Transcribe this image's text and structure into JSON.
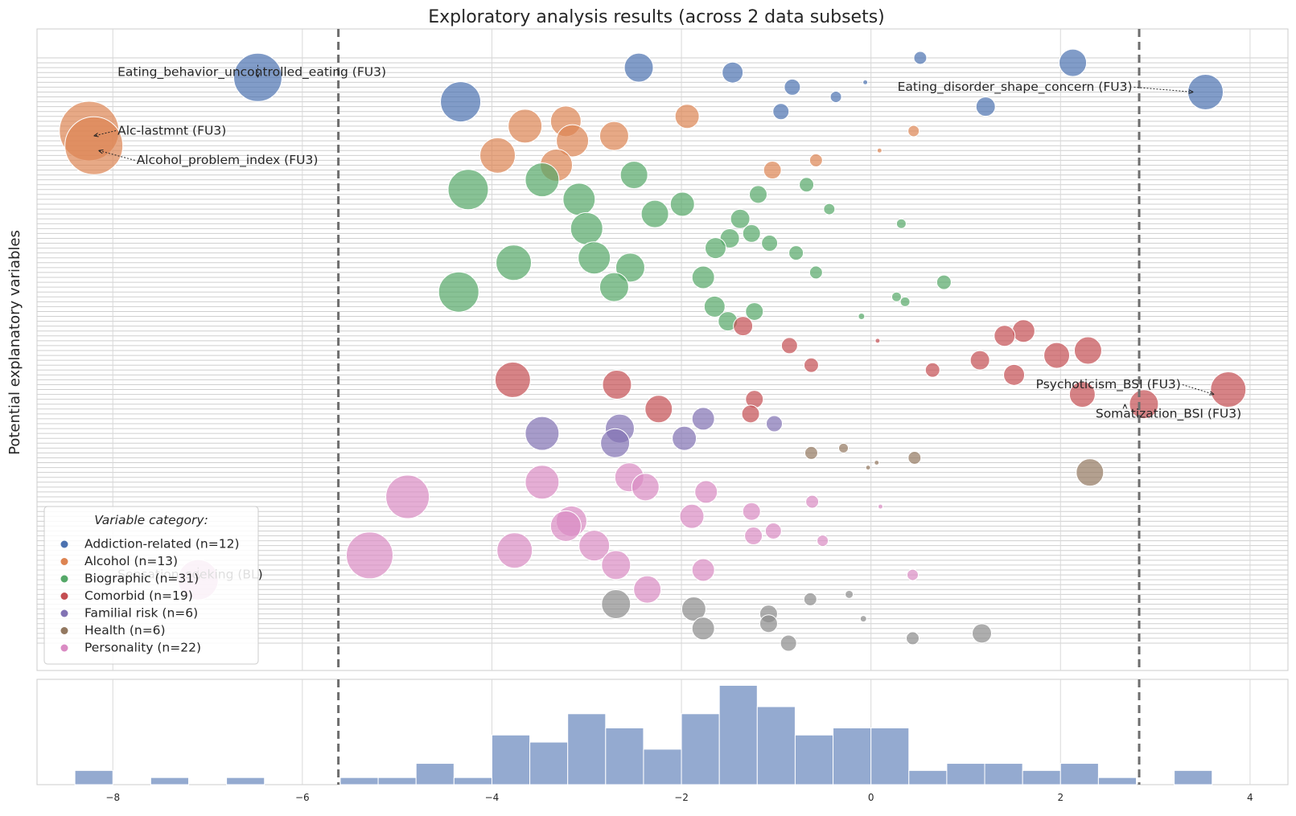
{
  "chart_data": {
    "type": "scatter",
    "title": "Exploratory analysis results (across 2 data subsets)",
    "ylabel": "Potential explanatory variables",
    "xlabel": "",
    "xlim": [
      -8.8,
      4.4
    ],
    "x_ticks": [
      -8,
      -6,
      -4,
      -2,
      0,
      2,
      4
    ],
    "x_tick_labels": [
      "−8",
      "−6",
      "−4",
      "−2",
      "0",
      "2",
      "4"
    ],
    "grid": true,
    "thresholds": [
      -5.62,
      2.83
    ],
    "legend": {
      "title": "Variable category:",
      "placement": "lower-left",
      "entries": [
        {
          "label": "Addiction-related (n=12)",
          "color": "#4c72b0"
        },
        {
          "label": "Alcohol (n=13)",
          "color": "#dd8452"
        },
        {
          "label": "Biographic (n=31)",
          "color": "#55a868"
        },
        {
          "label": "Comorbid (n=19)",
          "color": "#c44e52"
        },
        {
          "label": "Familial risk (n=6)",
          "color": "#8172b3"
        },
        {
          "label": "Health (n=6)",
          "color": "#937860"
        },
        {
          "label": "Personality (n=22)",
          "color": "#da8bc3"
        }
      ]
    },
    "colors": {
      "Addiction-related": "#4c72b0",
      "Alcohol": "#dd8452",
      "Biographic": "#55a868",
      "Comorbid": "#c44e52",
      "Familial risk": "#8172b3",
      "Health": "#937860",
      "Personality": "#da8bc3",
      "Other": "#8c8c8c"
    },
    "annotations": [
      {
        "text": "Eating_behavior_uncontrolled_eating (FU3)",
        "text_x": -7.95,
        "text_row": 3,
        "x": -6.47,
        "row": 4
      },
      {
        "text": "Eating_disorder_shape_concern (FU3)",
        "text_x": 0.28,
        "text_row": 6,
        "x": 3.4,
        "row": 7
      },
      {
        "text": "Alc-lastmnt (FU3)",
        "text_x": -7.95,
        "text_row": 15,
        "x": -8.2,
        "row": 16
      },
      {
        "text": "Alcohol_problem_index (FU3)",
        "text_x": -7.75,
        "text_row": 21,
        "x": -8.15,
        "row": 19
      },
      {
        "text": "Psychoticism_BSI (FU3)",
        "text_x": 1.74,
        "text_row": 67,
        "x": 3.62,
        "row": 69
      },
      {
        "text": "Somatization_BSI (FU3)",
        "text_x": 2.37,
        "text_row": 73,
        "x": 2.68,
        "row": 71
      },
      {
        "text": "Sensation_seeking (BL)",
        "text_x": -7.95,
        "text_row": 106,
        "x": -7.1,
        "row": 107
      }
    ],
    "n_rows": 118,
    "points": [
      {
        "x": 0.52,
        "row": 0,
        "s": 8,
        "c": "Addiction-related"
      },
      {
        "x": -2.45,
        "row": 2,
        "s": 18,
        "c": "Addiction-related"
      },
      {
        "x": 2.13,
        "row": 1,
        "s": 17,
        "c": "Addiction-related"
      },
      {
        "x": -1.46,
        "row": 3,
        "s": 13,
        "c": "Addiction-related"
      },
      {
        "x": -6.47,
        "row": 4,
        "s": 30,
        "c": "Addiction-related"
      },
      {
        "x": -0.83,
        "row": 6,
        "s": 10,
        "c": "Addiction-related"
      },
      {
        "x": -0.06,
        "row": 5,
        "s": 3,
        "c": "Addiction-related"
      },
      {
        "x": 3.53,
        "row": 7,
        "s": 22,
        "c": "Addiction-related"
      },
      {
        "x": -0.37,
        "row": 8,
        "s": 7,
        "c": "Addiction-related"
      },
      {
        "x": -4.33,
        "row": 9,
        "s": 25,
        "c": "Addiction-related"
      },
      {
        "x": 1.21,
        "row": 10,
        "s": 12,
        "c": "Addiction-related"
      },
      {
        "x": -0.95,
        "row": 11,
        "s": 10,
        "c": "Addiction-related"
      },
      {
        "x": -1.94,
        "row": 12,
        "s": 15,
        "c": "Alcohol"
      },
      {
        "x": -3.22,
        "row": 13,
        "s": 19,
        "c": "Alcohol"
      },
      {
        "x": -3.65,
        "row": 14,
        "s": 21,
        "c": "Alcohol"
      },
      {
        "x": 0.45,
        "row": 15,
        "s": 7,
        "c": "Alcohol"
      },
      {
        "x": -8.25,
        "row": 15,
        "s": 37,
        "c": "Alcohol"
      },
      {
        "x": -2.71,
        "row": 16,
        "s": 18,
        "c": "Alcohol"
      },
      {
        "x": -3.15,
        "row": 17,
        "s": 20,
        "c": "Alcohol"
      },
      {
        "x": -8.2,
        "row": 18,
        "s": 36,
        "c": "Alcohol"
      },
      {
        "x": 0.09,
        "row": 19,
        "s": 3,
        "c": "Alcohol"
      },
      {
        "x": -3.94,
        "row": 20,
        "s": 22,
        "c": "Alcohol"
      },
      {
        "x": -0.58,
        "row": 21,
        "s": 8,
        "c": "Alcohol"
      },
      {
        "x": -3.32,
        "row": 22,
        "s": 20,
        "c": "Alcohol"
      },
      {
        "x": -1.04,
        "row": 23,
        "s": 11,
        "c": "Alcohol"
      },
      {
        "x": -2.5,
        "row": 24,
        "s": 17,
        "c": "Biographic"
      },
      {
        "x": -3.47,
        "row": 25,
        "s": 21,
        "c": "Biographic"
      },
      {
        "x": -0.68,
        "row": 26,
        "s": 9,
        "c": "Biographic"
      },
      {
        "x": -4.25,
        "row": 27,
        "s": 25,
        "c": "Biographic"
      },
      {
        "x": -1.19,
        "row": 28,
        "s": 11,
        "c": "Biographic"
      },
      {
        "x": -3.08,
        "row": 29,
        "s": 20,
        "c": "Biographic"
      },
      {
        "x": -1.99,
        "row": 30,
        "s": 15,
        "c": "Biographic"
      },
      {
        "x": -0.44,
        "row": 31,
        "s": 7,
        "c": "Biographic"
      },
      {
        "x": -2.28,
        "row": 32,
        "s": 17,
        "c": "Biographic"
      },
      {
        "x": -1.38,
        "row": 33,
        "s": 12,
        "c": "Biographic"
      },
      {
        "x": 0.32,
        "row": 34,
        "s": 6,
        "c": "Biographic"
      },
      {
        "x": -3.0,
        "row": 35,
        "s": 20,
        "c": "Biographic"
      },
      {
        "x": -1.26,
        "row": 36,
        "s": 11,
        "c": "Biographic"
      },
      {
        "x": -1.49,
        "row": 37,
        "s": 12,
        "c": "Biographic"
      },
      {
        "x": -1.07,
        "row": 38,
        "s": 10,
        "c": "Biographic"
      },
      {
        "x": -1.64,
        "row": 39,
        "s": 13,
        "c": "Biographic"
      },
      {
        "x": -0.79,
        "row": 40,
        "s": 9,
        "c": "Biographic"
      },
      {
        "x": -2.92,
        "row": 41,
        "s": 20,
        "c": "Biographic"
      },
      {
        "x": -3.77,
        "row": 42,
        "s": 22,
        "c": "Biographic"
      },
      {
        "x": -2.54,
        "row": 43,
        "s": 18,
        "c": "Biographic"
      },
      {
        "x": -0.58,
        "row": 44,
        "s": 8,
        "c": "Biographic"
      },
      {
        "x": -1.77,
        "row": 45,
        "s": 14,
        "c": "Biographic"
      },
      {
        "x": 0.77,
        "row": 46,
        "s": 9,
        "c": "Biographic"
      },
      {
        "x": -2.71,
        "row": 47,
        "s": 18,
        "c": "Biographic"
      },
      {
        "x": -4.35,
        "row": 48,
        "s": 25,
        "c": "Biographic"
      },
      {
        "x": 0.27,
        "row": 49,
        "s": 6,
        "c": "Biographic"
      },
      {
        "x": 0.36,
        "row": 50,
        "s": 6,
        "c": "Biographic"
      },
      {
        "x": -1.65,
        "row": 51,
        "s": 13,
        "c": "Biographic"
      },
      {
        "x": -1.23,
        "row": 52,
        "s": 11,
        "c": "Biographic"
      },
      {
        "x": -0.1,
        "row": 53,
        "s": 4,
        "c": "Biographic"
      },
      {
        "x": -1.51,
        "row": 54,
        "s": 12,
        "c": "Biographic"
      },
      {
        "x": -1.35,
        "row": 55,
        "s": 12,
        "c": "Comorbid"
      },
      {
        "x": 1.61,
        "row": 56,
        "s": 14,
        "c": "Comorbid"
      },
      {
        "x": 1.41,
        "row": 57,
        "s": 13,
        "c": "Comorbid"
      },
      {
        "x": 0.07,
        "row": 58,
        "s": 3,
        "c": "Comorbid"
      },
      {
        "x": -0.86,
        "row": 59,
        "s": 10,
        "c": "Comorbid"
      },
      {
        "x": 2.29,
        "row": 60,
        "s": 17,
        "c": "Comorbid"
      },
      {
        "x": 1.96,
        "row": 61,
        "s": 16,
        "c": "Comorbid"
      },
      {
        "x": 1.15,
        "row": 62,
        "s": 12,
        "c": "Comorbid"
      },
      {
        "x": -0.63,
        "row": 63,
        "s": 9,
        "c": "Comorbid"
      },
      {
        "x": 0.65,
        "row": 64,
        "s": 9,
        "c": "Comorbid"
      },
      {
        "x": 1.51,
        "row": 65,
        "s": 13,
        "c": "Comorbid"
      },
      {
        "x": -3.78,
        "row": 66,
        "s": 22,
        "c": "Comorbid"
      },
      {
        "x": -2.68,
        "row": 67,
        "s": 18,
        "c": "Comorbid"
      },
      {
        "x": 3.77,
        "row": 68,
        "s": 22,
        "c": "Comorbid"
      },
      {
        "x": 2.23,
        "row": 69,
        "s": 16,
        "c": "Comorbid"
      },
      {
        "x": -1.23,
        "row": 70,
        "s": 11,
        "c": "Comorbid"
      },
      {
        "x": 2.88,
        "row": 71,
        "s": 18,
        "c": "Comorbid"
      },
      {
        "x": -2.24,
        "row": 72,
        "s": 17,
        "c": "Comorbid"
      },
      {
        "x": -1.27,
        "row": 73,
        "s": 11,
        "c": "Comorbid"
      },
      {
        "x": -1.77,
        "row": 74,
        "s": 14,
        "c": "Familial risk"
      },
      {
        "x": -1.02,
        "row": 75,
        "s": 10,
        "c": "Familial risk"
      },
      {
        "x": -2.65,
        "row": 76,
        "s": 18,
        "c": "Familial risk"
      },
      {
        "x": -3.47,
        "row": 77,
        "s": 21,
        "c": "Familial risk"
      },
      {
        "x": -1.97,
        "row": 78,
        "s": 15,
        "c": "Familial risk"
      },
      {
        "x": -2.7,
        "row": 79,
        "s": 18,
        "c": "Familial risk"
      },
      {
        "x": -0.29,
        "row": 80,
        "s": 6,
        "c": "Health"
      },
      {
        "x": -0.63,
        "row": 81,
        "s": 8,
        "c": "Health"
      },
      {
        "x": 0.46,
        "row": 82,
        "s": 8,
        "c": "Health"
      },
      {
        "x": 0.06,
        "row": 83,
        "s": 3,
        "c": "Health"
      },
      {
        "x": -0.03,
        "row": 84,
        "s": 3,
        "c": "Health"
      },
      {
        "x": 2.31,
        "row": 85,
        "s": 17,
        "c": "Health"
      },
      {
        "x": -2.55,
        "row": 86,
        "s": 18,
        "c": "Personality"
      },
      {
        "x": -3.47,
        "row": 87,
        "s": 21,
        "c": "Personality"
      },
      {
        "x": -2.38,
        "row": 88,
        "s": 17,
        "c": "Personality"
      },
      {
        "x": -1.74,
        "row": 89,
        "s": 14,
        "c": "Personality"
      },
      {
        "x": -4.89,
        "row": 90,
        "s": 27,
        "c": "Personality"
      },
      {
        "x": -0.62,
        "row": 91,
        "s": 8,
        "c": "Personality"
      },
      {
        "x": 0.1,
        "row": 92,
        "s": 3,
        "c": "Personality"
      },
      {
        "x": -1.26,
        "row": 93,
        "s": 11,
        "c": "Personality"
      },
      {
        "x": -1.89,
        "row": 94,
        "s": 15,
        "c": "Personality"
      },
      {
        "x": -3.16,
        "row": 95,
        "s": 19,
        "c": "Personality"
      },
      {
        "x": -3.22,
        "row": 96,
        "s": 19,
        "c": "Personality"
      },
      {
        "x": -1.03,
        "row": 97,
        "s": 10,
        "c": "Personality"
      },
      {
        "x": -1.24,
        "row": 98,
        "s": 11,
        "c": "Personality"
      },
      {
        "x": -0.51,
        "row": 99,
        "s": 7,
        "c": "Personality"
      },
      {
        "x": -2.92,
        "row": 100,
        "s": 19,
        "c": "Personality"
      },
      {
        "x": -3.76,
        "row": 101,
        "s": 22,
        "c": "Personality"
      },
      {
        "x": -5.29,
        "row": 102,
        "s": 29,
        "c": "Personality"
      },
      {
        "x": -2.69,
        "row": 104,
        "s": 18,
        "c": "Personality"
      },
      {
        "x": -1.77,
        "row": 105,
        "s": 14,
        "c": "Personality"
      },
      {
        "x": 0.44,
        "row": 106,
        "s": 7,
        "c": "Personality"
      },
      {
        "x": -7.1,
        "row": 107,
        "s": 25,
        "c": "Personality"
      },
      {
        "x": -2.36,
        "row": 109,
        "s": 17,
        "c": "Personality"
      },
      {
        "x": -0.23,
        "row": 110,
        "s": 5,
        "c": "Other"
      },
      {
        "x": -0.64,
        "row": 111,
        "s": 8,
        "c": "Other"
      },
      {
        "x": -2.69,
        "row": 112,
        "s": 18,
        "c": "Other"
      },
      {
        "x": -1.87,
        "row": 113,
        "s": 15,
        "c": "Other"
      },
      {
        "x": -1.08,
        "row": 114,
        "s": 11,
        "c": "Other"
      },
      {
        "x": -0.08,
        "row": 115,
        "s": 4,
        "c": "Other"
      },
      {
        "x": -1.08,
        "row": 116,
        "s": 11,
        "c": "Other"
      },
      {
        "x": -1.77,
        "row": 117,
        "s": 14,
        "c": "Other"
      },
      {
        "x": 1.17,
        "row": 118,
        "s": 12,
        "c": "Other"
      },
      {
        "x": 0.44,
        "row": 119,
        "s": 8,
        "c": "Other"
      },
      {
        "x": -0.87,
        "row": 120,
        "s": 10,
        "c": "Other"
      }
    ],
    "histogram": {
      "bin_edges": [
        -8.4,
        -8.0,
        -7.6,
        -7.2,
        -6.8,
        -6.4,
        -6.0,
        -5.6,
        -5.2,
        -4.8,
        -4.4,
        -4.0,
        -3.6,
        -3.2,
        -2.8,
        -2.4,
        -2.0,
        -1.6,
        -1.2,
        -0.8,
        -0.4,
        0.0,
        0.4,
        0.8,
        1.2,
        1.6,
        2.0,
        2.4,
        2.8,
        3.2,
        3.6,
        4.0
      ],
      "counts": [
        1,
        0,
        0.5,
        0,
        0.5,
        0,
        0,
        0.5,
        0.5,
        1.5,
        0.5,
        3.5,
        3,
        5,
        4,
        2.5,
        5,
        7,
        5.5,
        3.5,
        4,
        4,
        1,
        1.5,
        1.5,
        1,
        1.5,
        0.5,
        0,
        1,
        0
      ],
      "ymax": 7.2
    }
  }
}
